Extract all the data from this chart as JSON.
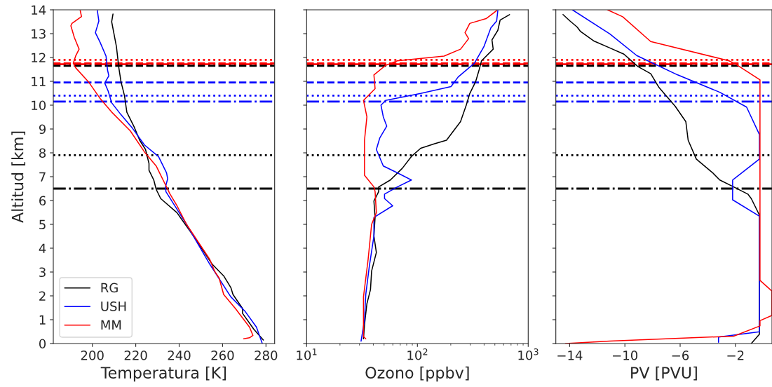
{
  "chart_data": [
    {
      "type": "line",
      "xlabel": "Temperatura [K]",
      "ylabel": "Altitud [km]",
      "xlim": [
        182,
        284
      ],
      "ylim": [
        0,
        14
      ],
      "xticks": [
        200,
        220,
        240,
        260,
        280
      ],
      "yticks": [
        0,
        1,
        2,
        3,
        4,
        5,
        6,
        7,
        8,
        9,
        10,
        11,
        12,
        13,
        14
      ],
      "legend": "bottom left",
      "grid": false,
      "series": [
        {
          "name": "RG",
          "color": "#000000",
          "x": [
            209.5,
            208.9,
            211.1,
            212.2,
            213.2,
            214.8,
            215.9,
            219.2,
            221.8,
            224.5,
            226.1,
            226.1,
            228.3,
            229.4,
            231.5,
            239.0,
            246.6,
            255.2,
            260.5,
            263.8,
            264.8,
            269.2,
            269.2,
            274.5,
            278.8
          ],
          "values": [
            13.82,
            13.5,
            12.45,
            11.57,
            10.98,
            10.4,
            9.7,
            9.1,
            8.53,
            8.14,
            7.55,
            7.27,
            6.86,
            6.47,
            6.08,
            5.49,
            4.51,
            3.33,
            2.84,
            2.35,
            2.06,
            1.47,
            1.27,
            0.59,
            0.15
          ]
        },
        {
          "name": "USH",
          "color": "#0000ff",
          "x": [
            202.3,
            203.0,
            201.4,
            203.5,
            206.3,
            207.0,
            207.6,
            205.7,
            207.3,
            208.9,
            213.2,
            218.6,
            224.0,
            230.5,
            234.2,
            234.7,
            233.7,
            233.9,
            243.4,
            254.1,
            263.8,
            270.2,
            275.6,
            278.3
          ],
          "values": [
            13.97,
            13.53,
            13.04,
            12.65,
            12.06,
            11.47,
            11.23,
            10.93,
            10.59,
            10.1,
            9.6,
            9.02,
            8.33,
            7.84,
            7.16,
            6.91,
            6.57,
            6.37,
            5.0,
            3.33,
            1.96,
            1.37,
            0.69,
            0.0
          ]
        },
        {
          "name": "MM",
          "color": "#ff0000",
          "x": [
            194.4,
            195.0,
            190.6,
            190.1,
            191.7,
            193.9,
            192.3,
            191.2,
            192.3,
            198.2,
            203.5,
            208.9,
            217.5,
            224.0,
            229.4,
            232.6,
            235.8,
            239.0,
            243.4,
            254.1,
            256.3,
            258.4,
            260.5,
            265.9,
            272.4,
            274.0,
            272.4,
            269.7
          ],
          "values": [
            13.97,
            13.72,
            13.43,
            13.33,
            12.84,
            12.35,
            12.06,
            11.76,
            11.57,
            10.98,
            10.29,
            9.71,
            8.92,
            8.04,
            7.45,
            6.86,
            6.27,
            5.78,
            5.0,
            3.53,
            3.04,
            2.75,
            2.06,
            1.47,
            0.69,
            0.34,
            0.24,
            0.2
          ]
        }
      ],
      "ref_lines": [
        {
          "axis": "y",
          "value": 11.9,
          "color": "#ff0000",
          "line_style": "dotted"
        },
        {
          "axis": "y",
          "value": 11.75,
          "color": "#ff0000",
          "line_style": "dashed"
        },
        {
          "axis": "y",
          "value": 11.72,
          "color": "#ff0000",
          "line_style": "dashdot"
        },
        {
          "axis": "y",
          "value": 11.65,
          "color": "#000000",
          "line_style": "dashed"
        },
        {
          "axis": "y",
          "value": 10.95,
          "color": "#0000ff",
          "line_style": "dashed"
        },
        {
          "axis": "y",
          "value": 10.4,
          "color": "#0000ff",
          "line_style": "dotted"
        },
        {
          "axis": "y",
          "value": 10.15,
          "color": "#0000ff",
          "line_style": "dashdot"
        },
        {
          "axis": "y",
          "value": 7.9,
          "color": "#000000",
          "line_style": "dotted"
        },
        {
          "axis": "y",
          "value": 6.5,
          "color": "#000000",
          "line_style": "dashdot"
        }
      ]
    },
    {
      "type": "line",
      "xlabel": "Ozono [ppbv]",
      "log": "x",
      "xlim": [
        10,
        1000
      ],
      "ylim": [
        0,
        14
      ],
      "xticks": [
        {
          "value": 10,
          "label": "10$^{1}$"
        },
        {
          "value": 100,
          "label": "10$^{2}$"
        },
        {
          "value": 1000,
          "label": "10$^{3}$"
        }
      ],
      "yticks": [
        0,
        1,
        2,
        3,
        4,
        5,
        6,
        7,
        8,
        9,
        10,
        11,
        12,
        13,
        14
      ],
      "tick_labels": "x",
      "grid": false,
      "series": [
        {
          "color": "#000000",
          "x": [
            679,
            558,
            532,
            471,
            483,
            379,
            360,
            335,
            297,
            276,
            245,
            183,
            143,
            107,
            88,
            73,
            57,
            44.7,
            44.7,
            40.5,
            41.5,
            40.5,
            42.6,
            38.6,
            37.7,
            35,
            33.3,
            32.6
          ],
          "values": [
            13.8,
            13.57,
            13.14,
            12.74,
            12.35,
            11.86,
            11.47,
            10.98,
            10.49,
            10.0,
            9.31,
            8.53,
            8.38,
            8.19,
            7.84,
            7.35,
            6.86,
            6.57,
            6.37,
            5.98,
            5.29,
            4.51,
            3.82,
            3.04,
            2.26,
            1.67,
            0.79,
            0.2
          ]
        },
        {
          "color": "#0000ff",
          "x": [
            532,
            519,
            460,
            398,
            327,
            233,
            201,
            107,
            51.6,
            46.9,
            49.2,
            52.9,
            45.8,
            42.6,
            49.2,
            65.9,
            88.3,
            65.9,
            50.5,
            50.5,
            59.8,
            40.5,
            40.5,
            36.8,
            34.2,
            33.3,
            31
          ],
          "values": [
            13.97,
            13.53,
            13.24,
            12.45,
            11.76,
            11.18,
            10.78,
            10.49,
            10.2,
            10.0,
            9.51,
            9.12,
            8.63,
            8.14,
            7.45,
            7.16,
            6.86,
            6.57,
            6.27,
            6.08,
            5.78,
            5.29,
            4.51,
            3.24,
            2.06,
            0.98,
            0.1
          ]
        },
        {
          "color": "#ff0000",
          "x": [
            519,
            417,
            297,
            269,
            290,
            245,
            174,
            65.9,
            51.6,
            40.5,
            41.5,
            32.6,
            35,
            33.3,
            33.3,
            40.5,
            41.5,
            42.6,
            38.6,
            35.9,
            32.6,
            32.6,
            34.2
          ],
          "values": [
            13.97,
            13.63,
            13.43,
            13.04,
            12.79,
            12.35,
            12.06,
            11.86,
            11.67,
            11.27,
            10.69,
            10.2,
            9.51,
            8.53,
            7.06,
            6.57,
            6.37,
            5.49,
            5.0,
            3.53,
            1.96,
            0.29,
            0.2
          ]
        }
      ],
      "ref_lines": [
        {
          "axis": "y",
          "value": 11.9,
          "color": "#ff0000",
          "line_style": "dotted"
        },
        {
          "axis": "y",
          "value": 11.75,
          "color": "#ff0000",
          "line_style": "dashed"
        },
        {
          "axis": "y",
          "value": 11.72,
          "color": "#ff0000",
          "line_style": "dashdot"
        },
        {
          "axis": "y",
          "value": 11.65,
          "color": "#000000",
          "line_style": "dashed"
        },
        {
          "axis": "y",
          "value": 10.95,
          "color": "#0000ff",
          "line_style": "dashed"
        },
        {
          "axis": "y",
          "value": 10.4,
          "color": "#0000ff",
          "line_style": "dotted"
        },
        {
          "axis": "y",
          "value": 10.15,
          "color": "#0000ff",
          "line_style": "dashdot"
        },
        {
          "axis": "y",
          "value": 7.9,
          "color": "#000000",
          "line_style": "dotted"
        },
        {
          "axis": "y",
          "value": 6.5,
          "color": "#000000",
          "line_style": "dashdot"
        }
      ]
    },
    {
      "type": "line",
      "xlabel": "PV [PVU]",
      "xlim": [
        -15.0,
        0.65
      ],
      "ylim": [
        0,
        14
      ],
      "xticks": [
        {
          "value": -14,
          "label": "−14"
        },
        {
          "value": -10,
          "label": "−10"
        },
        {
          "value": -6,
          "label": "−6"
        },
        {
          "value": -2,
          "label": "−2"
        }
      ],
      "yticks": [
        0,
        1,
        2,
        3,
        4,
        5,
        6,
        7,
        8,
        9,
        10,
        11,
        12,
        13,
        14
      ],
      "tick_labels": "x",
      "grid": false,
      "series": [
        {
          "color": "#000000",
          "x": [
            -14.48,
            -13.97,
            -13.46,
            -13.21,
            -12.27,
            -11.09,
            -10.07,
            -9.06,
            -8.13,
            -7.53,
            -6.35,
            -5.59,
            -5.42,
            -4.83,
            -3.64,
            -3.13,
            -2.12,
            -1.1,
            -0.85,
            -0.26,
            -0.26,
            -0.85
          ],
          "values": [
            13.8,
            13.53,
            13.28,
            13.09,
            12.7,
            12.4,
            12.14,
            11.62,
            11.32,
            10.74,
            9.95,
            9.31,
            8.53,
            7.74,
            7.16,
            6.86,
            6.57,
            6.27,
            6.08,
            5.39,
            0.39,
            0.0
          ]
        },
        {
          "color": "#0000ff",
          "x": [
            -13.8,
            -11.09,
            -9.14,
            -6.18,
            -3.13,
            -1.19,
            -0.26,
            -0.26,
            -2.2,
            -2.2,
            -0.26,
            -0.26,
            -3.22,
            -3.22
          ],
          "values": [
            14.0,
            12.99,
            12.08,
            11.27,
            10.54,
            9.92,
            8.77,
            7.74,
            6.86,
            6.03,
            5.34,
            0.49,
            0.27,
            0.05
          ]
        },
        {
          "color": "#ff0000",
          "x": [
            -11.26,
            -10.16,
            -8.13,
            -2.46,
            -1.95,
            -0.22,
            -0.22,
            0.64,
            0.64,
            -0.22,
            -0.22,
            -2.12,
            -11.09,
            -14.3
          ],
          "values": [
            14.0,
            13.71,
            12.67,
            11.86,
            11.71,
            11.06,
            2.65,
            2.2,
            1.18,
            0.96,
            0.74,
            0.31,
            0.1,
            0.0
          ]
        }
      ],
      "ref_lines": [
        {
          "axis": "y",
          "value": 11.9,
          "color": "#ff0000",
          "line_style": "dotted"
        },
        {
          "axis": "y",
          "value": 11.75,
          "color": "#ff0000",
          "line_style": "dashed"
        },
        {
          "axis": "y",
          "value": 11.72,
          "color": "#ff0000",
          "line_style": "dashdot"
        },
        {
          "axis": "y",
          "value": 11.65,
          "color": "#000000",
          "line_style": "dashed"
        },
        {
          "axis": "y",
          "value": 10.95,
          "color": "#0000ff",
          "line_style": "dashed"
        },
        {
          "axis": "y",
          "value": 10.4,
          "color": "#0000ff",
          "line_style": "dotted"
        },
        {
          "axis": "y",
          "value": 10.15,
          "color": "#0000ff",
          "line_style": "dashdot"
        },
        {
          "axis": "y",
          "value": 7.9,
          "color": "#000000",
          "line_style": "dotted"
        },
        {
          "axis": "y",
          "value": 6.5,
          "color": "#000000",
          "line_style": "dashdot"
        }
      ]
    }
  ]
}
